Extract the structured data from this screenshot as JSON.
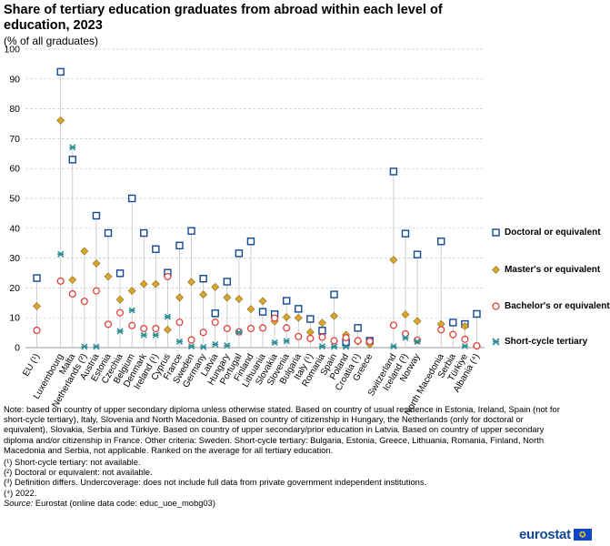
{
  "chart_data": {
    "type": "scatter",
    "title": "Share of tertiary education graduates from abroad within each level of education, 2023",
    "subtitle": "(% of all graduates)",
    "ylim": [
      0,
      100
    ],
    "yticks": [
      0,
      10,
      20,
      30,
      40,
      50,
      60,
      70,
      80,
      90,
      100
    ],
    "categories": [
      "EU (¹)",
      "Luxembourg",
      "Malta",
      "Netherlands (²)",
      "Austria",
      "Estonia",
      "Czechia",
      "Belgium",
      "Denmark",
      "Ireland (¹)",
      "Cyprus",
      "France",
      "Sweden",
      "Germany",
      "Latvia",
      "Hungary",
      "Portugal",
      "Finland",
      "Lithuania",
      "Slovakia",
      "Slovenia",
      "Bulgaria",
      "Italy (¹)",
      "Romania",
      "Spain",
      "Poland",
      "Croatia (¹)",
      "Greece",
      "Switzerland",
      "Iceland (³)",
      "Norway",
      "North Macedonia",
      "Serbia",
      "Türkiye",
      "Albania (⁴)"
    ],
    "gaps_after": [
      "EU (¹)",
      "Greece",
      "Norway"
    ],
    "series": [
      {
        "name": "Doctoral or equivalent",
        "marker": "square",
        "color": "#134893",
        "values": [
          23.3,
          92.4,
          63,
          null,
          44.2,
          38.4,
          24.9,
          50,
          38.4,
          33,
          25.1,
          34.2,
          39.1,
          23.1,
          11.5,
          22.1,
          31.6,
          35.6,
          12,
          11.2,
          15.7,
          13,
          9.6,
          5.7,
          17.8,
          1.8,
          6.6,
          2.3,
          59,
          38.2,
          31.2,
          35.6,
          8.4,
          7.9,
          11.3
        ]
      },
      {
        "name": "Master's or equivalent",
        "marker": "diamond",
        "color": "#d8a630",
        "values": [
          13.9,
          76.1,
          22.7,
          32.3,
          28.2,
          23.8,
          16.1,
          19,
          21.3,
          21.3,
          6,
          16.8,
          22,
          17.8,
          20.3,
          16.8,
          16.3,
          12.9,
          15.6,
          8.8,
          10.2,
          10,
          5.2,
          8.3,
          10.6,
          4.3,
          2.1,
          1.1,
          29.4,
          11.1,
          8.9,
          7.9,
          4.3,
          7.2,
          0.5
        ]
      },
      {
        "name": "Bachelor's or equivalent",
        "marker": "circle",
        "color": "#e0413d",
        "values": [
          5.8,
          22.3,
          18,
          15.5,
          19,
          7.8,
          11.7,
          7.4,
          6.4,
          6.4,
          23.8,
          8.5,
          2.6,
          5.1,
          8.5,
          6.4,
          5.3,
          6.4,
          6.6,
          9.9,
          6.6,
          3.7,
          3.1,
          3.5,
          2.3,
          3.3,
          2.3,
          2.1,
          7.5,
          4.6,
          2.5,
          6,
          4.4,
          2.8,
          0.6
        ]
      },
      {
        "name": "Short-cycle tertiary",
        "marker": "star",
        "color": "#2a8c94",
        "values": [
          null,
          31.3,
          67.1,
          0.3,
          0.3,
          null,
          5.5,
          12.5,
          4.2,
          4.2,
          10.3,
          2,
          0.4,
          0.2,
          1.1,
          0.7,
          5.1,
          null,
          null,
          1.7,
          2.2,
          null,
          null,
          0.4,
          0.3,
          0.3,
          null,
          null,
          0.4,
          3.3,
          2,
          null,
          null,
          0.5,
          null
        ]
      }
    ]
  },
  "notes": [
    "Note: based on country of upper secondary diploma unless otherwise stated. Based on country of usual residence in Estonia, Ireland, Spain (not for short-cycle tertiary), Italy, Slovenia and North Macedonia. Based on country of citizenship in Hungary, the Netherlands (only for doctoral or equivalent), Slovakia, Serbia and Türkiye. Based on country of upper secondary/prior education in Latvia. Based on country of upper secondary diploma and/or citizenship in France. Other criteria: Sweden. Short-cycle tertiary: Bulgaria, Estonia, Greece, Lithuania, Romania, Finland, North Macedonia and Serbia, not applicable. Ranked on the average for all tertiary education.",
    "(¹) Short-cycle tertiary: not available.",
    "(²) Doctoral or equivalent: not available.",
    "(³) Definition differs. Undercoverage: does not include full data from private government independent institutions.",
    "(⁴) 2022."
  ],
  "source": {
    "label": "Source:",
    "text": "Eurostat (online data code: educ_uoe_mobg03)"
  },
  "logo": {
    "text": "eurostat",
    "flag_glyph": "✪"
  }
}
